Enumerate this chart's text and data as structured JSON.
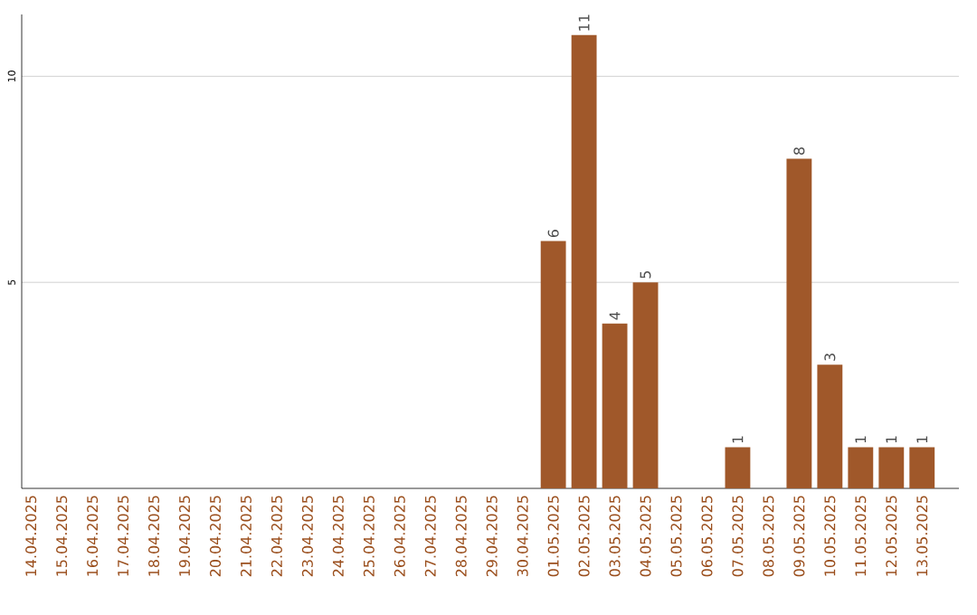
{
  "chart_data": {
    "type": "bar",
    "categories": [
      "14.04.2025",
      "15.04.2025",
      "16.04.2025",
      "17.04.2025",
      "18.04.2025",
      "19.04.2025",
      "20.04.2025",
      "21.04.2025",
      "22.04.2025",
      "23.04.2025",
      "24.04.2025",
      "25.04.2025",
      "26.04.2025",
      "27.04.2025",
      "28.04.2025",
      "29.04.2025",
      "30.04.2025",
      "01.05.2025",
      "02.05.2025",
      "03.05.2025",
      "04.05.2025",
      "05.05.2025",
      "06.05.2025",
      "07.05.2025",
      "08.05.2025",
      "09.05.2025",
      "10.05.2025",
      "11.05.2025",
      "12.05.2025",
      "13.05.2025"
    ],
    "values": [
      0,
      0,
      0,
      0,
      0,
      0,
      0,
      0,
      0,
      0,
      0,
      0,
      0,
      0,
      0,
      0,
      0,
      6,
      11,
      4,
      5,
      0,
      0,
      1,
      0,
      8,
      3,
      1,
      1,
      1
    ],
    "value_labels": [
      null,
      null,
      null,
      null,
      null,
      null,
      null,
      null,
      null,
      null,
      null,
      null,
      null,
      null,
      null,
      null,
      null,
      "6",
      "11",
      "4",
      "5",
      null,
      null,
      "1",
      null,
      "8",
      "3",
      "1",
      "1",
      "1"
    ],
    "color": "#a0582a",
    "ylim": [
      0,
      11.5
    ],
    "yticks": [
      5,
      10
    ],
    "grid": "y"
  }
}
